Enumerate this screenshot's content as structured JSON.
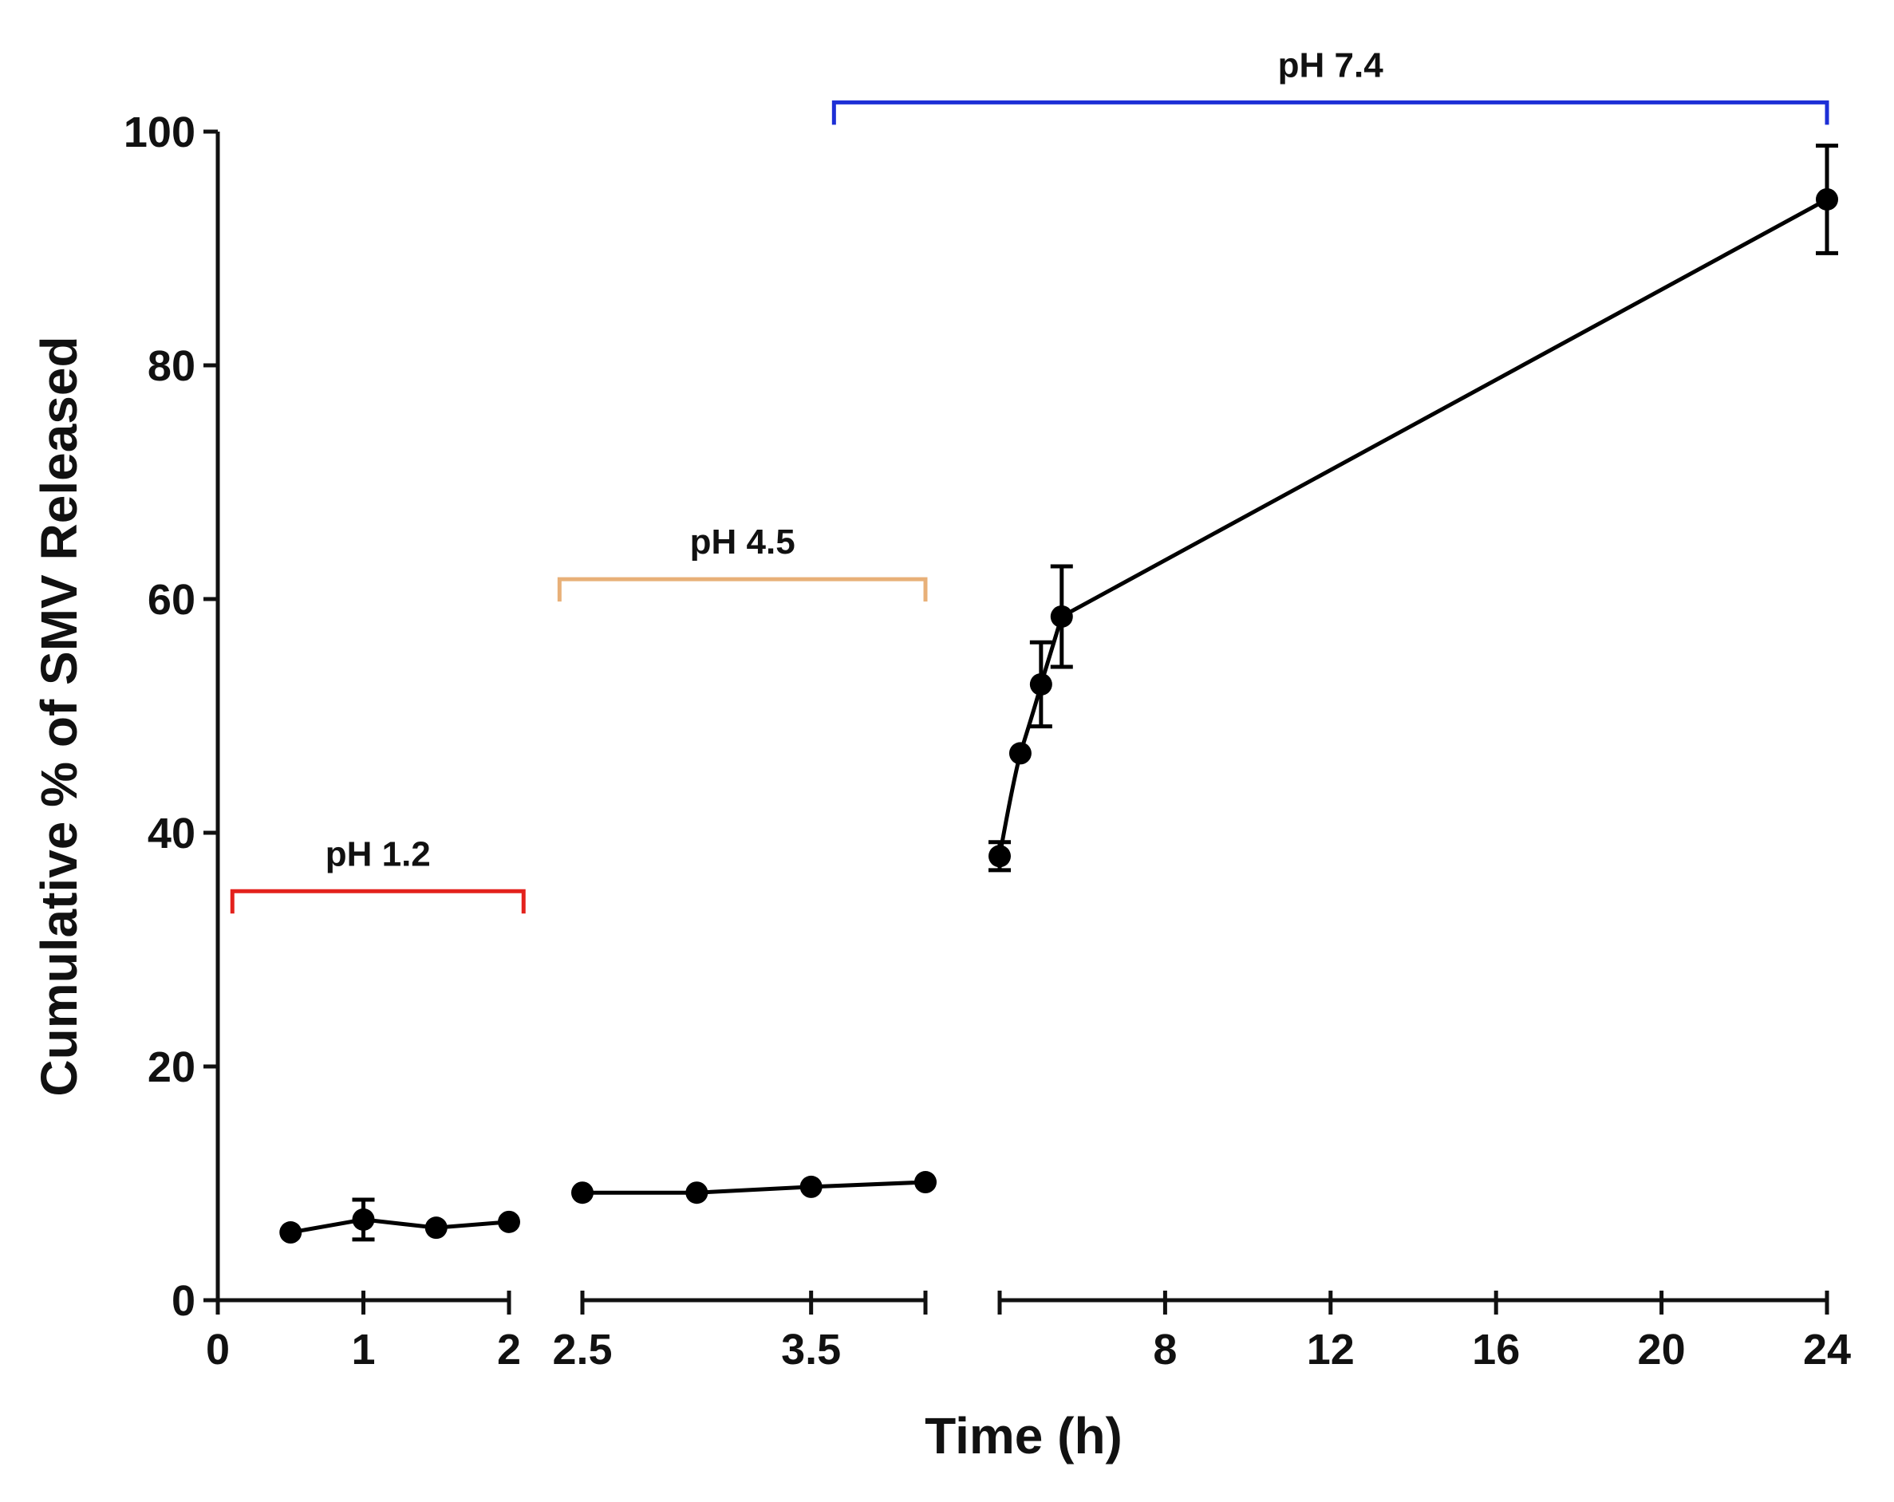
{
  "chart_data": {
    "type": "line",
    "title": "",
    "xlabel": "Time (h)",
    "ylabel": "Cumulative % of SMV Released",
    "ylim": [
      0,
      100
    ],
    "yticks": [
      0,
      20,
      40,
      60,
      80,
      100
    ],
    "segments": [
      {
        "name": "segment-1",
        "xlim": [
          0,
          2
        ],
        "xticks": [
          0,
          1,
          2
        ],
        "tick_labels": [
          "0",
          "1",
          "2"
        ],
        "points": [
          {
            "x": 0.5,
            "y": 5.8,
            "err": 0
          },
          {
            "x": 1.0,
            "y": 6.9,
            "err": 1.7
          },
          {
            "x": 1.5,
            "y": 6.2,
            "err": 0
          },
          {
            "x": 2.0,
            "y": 6.7,
            "err": 0
          }
        ]
      },
      {
        "name": "segment-2",
        "xlim": [
          2.5,
          4
        ],
        "xticks": [
          2.5,
          3.5,
          4
        ],
        "tick_labels": [
          "2.5",
          "3.5",
          ""
        ],
        "points": [
          {
            "x": 2.5,
            "y": 9.2,
            "err": 0
          },
          {
            "x": 3.0,
            "y": 9.2,
            "err": 0
          },
          {
            "x": 3.5,
            "y": 9.7,
            "err": 0
          },
          {
            "x": 4.0,
            "y": 10.1,
            "err": 0
          }
        ]
      },
      {
        "name": "segment-3",
        "xlim": [
          4,
          24
        ],
        "xticks": [
          4,
          8,
          12,
          16,
          20,
          24
        ],
        "tick_labels": [
          "",
          "8",
          "12",
          "16",
          "20",
          "24"
        ],
        "points": [
          {
            "x": 4.0,
            "y": 38.0,
            "err": 1.2
          },
          {
            "x": 4.5,
            "y": 46.8,
            "err": 0
          },
          {
            "x": 5.0,
            "y": 52.7,
            "err": 3.6
          },
          {
            "x": 5.5,
            "y": 58.5,
            "err": 4.3
          },
          {
            "x": 24.0,
            "y": 94.2,
            "err": 4.6
          }
        ]
      }
    ],
    "annotations": [
      {
        "label": "pH 1.2",
        "color": "#e3211c",
        "x_start": 0.1,
        "x_end": 2.1,
        "y": 35
      },
      {
        "label": "pH 4.5",
        "color": "#e8b078",
        "x_start": 2.4,
        "x_end": 4.0,
        "y": 61.7
      },
      {
        "label": "pH 7.4",
        "color": "#1d2fd6",
        "x_start": 3.6,
        "x_end": 24.0,
        "y": 102.5
      }
    ]
  }
}
